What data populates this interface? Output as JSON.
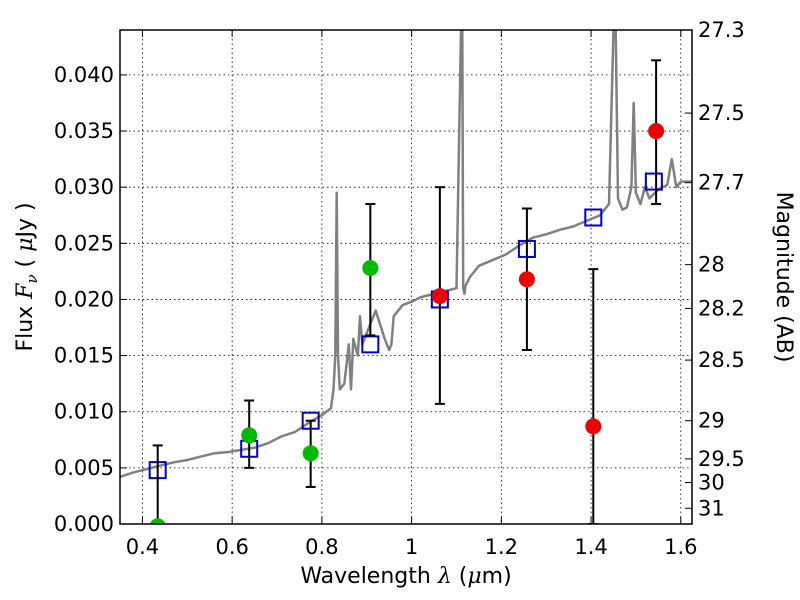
{
  "chart_data": {
    "type": "scatter",
    "xlabel": "Wavelength  λ (μm)",
    "ylabel": "Flux  F_ν  ( μJy )",
    "y2label": "Magnitude (AB)",
    "xlim": [
      0.35,
      1.625
    ],
    "ylim": [
      0.0,
      0.044
    ],
    "grid": true,
    "x_ticks": [
      0.4,
      0.6,
      0.8,
      1.0,
      1.2,
      1.4,
      1.6
    ],
    "x_tick_labels": [
      "0.4",
      "0.6",
      "0.8",
      "1",
      "1.2",
      "1.4",
      "1.6"
    ],
    "y_ticks": [
      0.0,
      0.005,
      0.01,
      0.015,
      0.02,
      0.025,
      0.03,
      0.035,
      0.04
    ],
    "y_tick_labels": [
      "0.000",
      "0.005",
      "0.010",
      "0.015",
      "0.020",
      "0.025",
      "0.030",
      "0.035",
      "0.040"
    ],
    "y2_ticks": [
      {
        "label": "27.3",
        "flux": 0.044
      },
      {
        "label": "27.5",
        "flux": 0.0366
      },
      {
        "label": "27.7",
        "flux": 0.0304
      },
      {
        "label": "28",
        "flux": 0.0231
      },
      {
        "label": "28.2",
        "flux": 0.0192
      },
      {
        "label": "28.5",
        "flux": 0.0146
      },
      {
        "label": "29",
        "flux": 0.0092
      },
      {
        "label": "29.5",
        "flux": 0.0058
      },
      {
        "label": "30",
        "flux": 0.0037
      },
      {
        "label": "31",
        "flux": 0.0014
      }
    ],
    "colors": {
      "spectrum": "#808080",
      "model": "#0000cc",
      "green": "#00bb00",
      "red": "#ee0000",
      "errorbar": "#000000"
    },
    "spectrum": {
      "x": [
        0.35,
        0.38,
        0.41,
        0.44,
        0.47,
        0.5,
        0.53,
        0.56,
        0.59,
        0.62,
        0.65,
        0.68,
        0.71,
        0.74,
        0.77,
        0.8,
        0.82,
        0.826,
        0.83,
        0.833,
        0.836,
        0.84,
        0.85,
        0.86,
        0.865,
        0.87,
        0.88,
        0.885,
        0.89,
        0.9,
        0.92,
        0.94,
        0.95,
        0.955,
        0.96,
        0.97,
        0.98,
        1.0,
        1.02,
        1.04,
        1.06,
        1.08,
        1.1,
        1.11,
        1.113,
        1.115,
        1.118,
        1.12,
        1.13,
        1.15,
        1.18,
        1.21,
        1.24,
        1.27,
        1.3,
        1.33,
        1.36,
        1.39,
        1.42,
        1.44,
        1.45,
        1.455,
        1.46,
        1.465,
        1.47,
        1.48,
        1.49,
        1.495,
        1.5,
        1.51,
        1.52,
        1.53,
        1.55,
        1.57,
        1.58,
        1.59,
        1.6,
        1.625
      ],
      "y": [
        0.0042,
        0.0046,
        0.0049,
        0.0052,
        0.0055,
        0.0057,
        0.006,
        0.0063,
        0.0064,
        0.0066,
        0.0068,
        0.0072,
        0.0078,
        0.0082,
        0.009,
        0.0097,
        0.0103,
        0.012,
        0.015,
        0.0295,
        0.015,
        0.012,
        0.0125,
        0.016,
        0.012,
        0.0165,
        0.015,
        0.0185,
        0.016,
        0.017,
        0.019,
        0.0165,
        0.0155,
        0.016,
        0.0185,
        0.019,
        0.0195,
        0.0198,
        0.0202,
        0.0204,
        0.0206,
        0.0208,
        0.021,
        0.044,
        0.044,
        0.021,
        0.0205,
        0.0212,
        0.022,
        0.023,
        0.0235,
        0.024,
        0.0248,
        0.0255,
        0.0258,
        0.0262,
        0.0265,
        0.027,
        0.0275,
        0.0285,
        0.044,
        0.044,
        0.029,
        0.0285,
        0.028,
        0.0282,
        0.03,
        0.0375,
        0.0295,
        0.0285,
        0.03,
        0.029,
        0.0298,
        0.0302,
        0.0325,
        0.03,
        0.0305,
        0.0305
      ]
    },
    "series": [
      {
        "marker": "open-square",
        "x": [
          0.434,
          0.638,
          0.775,
          0.908,
          1.063,
          1.257,
          1.405,
          1.54
        ],
        "y": [
          0.0048,
          0.0067,
          0.0092,
          0.016,
          0.02,
          0.0245,
          0.0273,
          0.0305
        ]
      },
      {
        "marker": "filled-circle-green",
        "x": [
          0.434,
          0.638,
          0.775,
          0.908
        ],
        "y": [
          -0.0002,
          0.0079,
          0.0063,
          0.0228
        ],
        "err_low": [
          0.0002,
          0.0029,
          0.003,
          0.006
        ],
        "err_high": [
          0.0072,
          0.0031,
          0.0029,
          0.0057
        ]
      },
      {
        "marker": "filled-circle-red",
        "x": [
          1.063,
          1.257,
          1.405,
          1.545
        ],
        "y": [
          0.0203,
          0.0218,
          0.0087,
          0.035
        ],
        "err_low": [
          0.0096,
          0.0063,
          0.0087,
          0.0065
        ],
        "err_high": [
          0.0097,
          0.0063,
          0.014,
          0.0063
        ]
      }
    ]
  }
}
